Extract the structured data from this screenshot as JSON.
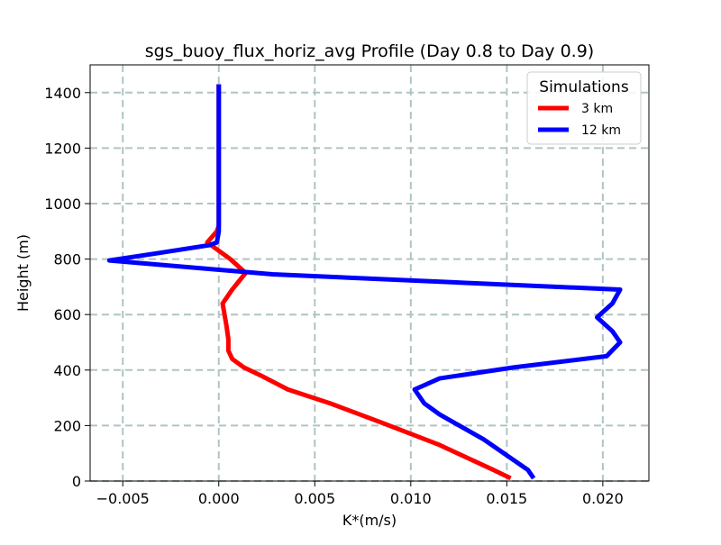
{
  "chart_data": {
    "type": "line",
    "title": "sgs_buoy_flux_horiz_avg Profile (Day 0.8 to Day 0.9)",
    "xlabel": "K*(m/s)",
    "ylabel": "Height (m)",
    "xlim": [
      -0.0067,
      0.0224
    ],
    "ylim": [
      0,
      1500
    ],
    "xticks": [
      -0.005,
      0.0,
      0.005,
      0.01,
      0.015,
      0.02
    ],
    "xtick_labels": [
      "−0.005",
      "0.000",
      "0.005",
      "0.010",
      "0.015",
      "0.020"
    ],
    "yticks": [
      0,
      200,
      400,
      600,
      800,
      1000,
      1200,
      1400
    ],
    "ytick_labels": [
      "0",
      "200",
      "400",
      "600",
      "800",
      "1000",
      "1200",
      "1400"
    ],
    "grid": true,
    "legend": {
      "title": "Simulations",
      "position": "top-right"
    },
    "series": [
      {
        "name": "3 km",
        "color": "#ff0000",
        "x": [
          0.0152,
          0.0143,
          0.0115,
          0.0085,
          0.0058,
          0.0036,
          0.0022,
          0.0013,
          0.0007,
          0.0005,
          0.0005,
          0.0004,
          0.0003,
          0.0002,
          0.0007,
          0.0014,
          0.0006,
          -0.0002,
          -0.0006,
          -0.0001,
          0.0,
          0.0,
          0.0,
          0.0,
          0.0,
          0.0
        ],
        "y": [
          10,
          40,
          130,
          210,
          280,
          330,
          380,
          410,
          440,
          470,
          510,
          560,
          600,
          640,
          690,
          750,
          800,
          840,
          860,
          900,
          920,
          950,
          1000,
          1100,
          1200,
          1430
        ]
      },
      {
        "name": "12 km",
        "color": "#0000ff",
        "x": [
          0.0164,
          0.0161,
          0.0138,
          0.0115,
          0.0107,
          0.0102,
          0.0115,
          0.0154,
          0.0202,
          0.0209,
          0.0205,
          0.0197,
          0.0205,
          0.0209,
          0.0028,
          -0.0057,
          -0.0033,
          -0.0005,
          -0.0001,
          0.0,
          0.0,
          0.0,
          0.0,
          0.0
        ],
        "y": [
          10,
          40,
          150,
          240,
          280,
          330,
          370,
          410,
          450,
          500,
          540,
          590,
          640,
          690,
          745,
          795,
          820,
          850,
          860,
          900,
          1000,
          1100,
          1200,
          1430
        ]
      }
    ]
  }
}
